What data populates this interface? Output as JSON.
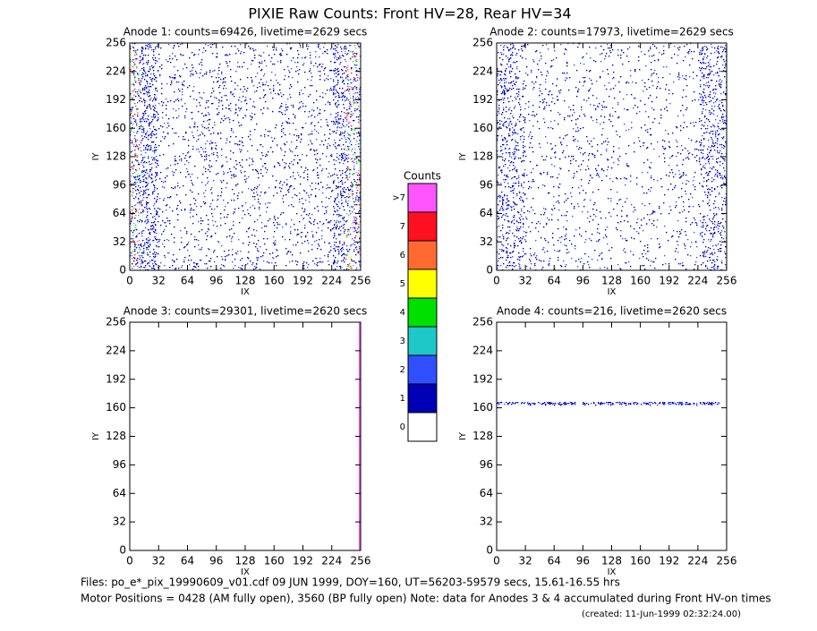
{
  "title": "PIXIE Raw Counts:  Front HV=28, Rear HV=34",
  "chart_data": [
    {
      "type": "heatmap",
      "title": "Anode 1: counts=69426, livetime=2629 secs",
      "xlabel": "IX",
      "ylabel": "IY",
      "xlim": [
        0,
        256
      ],
      "ylim": [
        0,
        256
      ],
      "xticks": [
        0,
        32,
        64,
        96,
        128,
        160,
        192,
        224,
        256
      ],
      "yticks": [
        0,
        32,
        64,
        96,
        128,
        160,
        192,
        224,
        256
      ]
    },
    {
      "type": "heatmap",
      "title": "Anode 2: counts=17973, livetime=2629 secs",
      "xlabel": "IX",
      "ylabel": "IY",
      "xlim": [
        0,
        256
      ],
      "ylim": [
        0,
        256
      ],
      "xticks": [
        0,
        32,
        64,
        96,
        128,
        160,
        192,
        224,
        256
      ],
      "yticks": [
        0,
        32,
        64,
        96,
        128,
        160,
        192,
        224,
        256
      ]
    },
    {
      "type": "heatmap",
      "title": "Anode 3: counts=29301, livetime=2620 secs",
      "xlabel": "IX",
      "ylabel": "IY",
      "xlim": [
        0,
        256
      ],
      "ylim": [
        0,
        256
      ],
      "xticks": [
        0,
        32,
        64,
        96,
        128,
        160,
        192,
        224,
        256
      ],
      "yticks": [
        0,
        32,
        64,
        96,
        128,
        160,
        192,
        224,
        256
      ]
    },
    {
      "type": "heatmap",
      "title": "Anode 4: counts=216, livetime=2620 secs",
      "xlabel": "IX",
      "ylabel": "IY",
      "xlim": [
        0,
        256
      ],
      "ylim": [
        0,
        256
      ],
      "xticks": [
        0,
        32,
        64,
        96,
        128,
        160,
        192,
        224,
        256
      ],
      "yticks": [
        0,
        32,
        64,
        96,
        128,
        160,
        192,
        224,
        256
      ]
    }
  ],
  "colorbar": {
    "title": "Counts",
    "levels": [
      {
        "label": "0",
        "color": "#ffffff"
      },
      {
        "label": "1",
        "color": "#0000b4"
      },
      {
        "label": "2",
        "color": "#3050ff"
      },
      {
        "label": "3",
        "color": "#1ec8c8"
      },
      {
        "label": "4",
        "color": "#00e000"
      },
      {
        "label": "5",
        "color": "#ffff00"
      },
      {
        "label": "6",
        "color": "#ff6a30"
      },
      {
        "label": "7",
        "color": "#ff1020"
      },
      {
        "label": ">7",
        "color": "#ff55ff"
      }
    ]
  },
  "footer": {
    "files": "Files: po_e*_pix_19990609_v01.cdf    09 JUN 1999, DOY=160, UT=56203-59579 secs, 15.61-16.55 hrs",
    "motor": "Motor Positions = 0428 (AM fully open), 3560 (BP fully open)    Note: data for Anodes 3 & 4 accumulated during Front HV-on times",
    "created": "(created: 11-Jun-1999 02:32:24.00)"
  }
}
